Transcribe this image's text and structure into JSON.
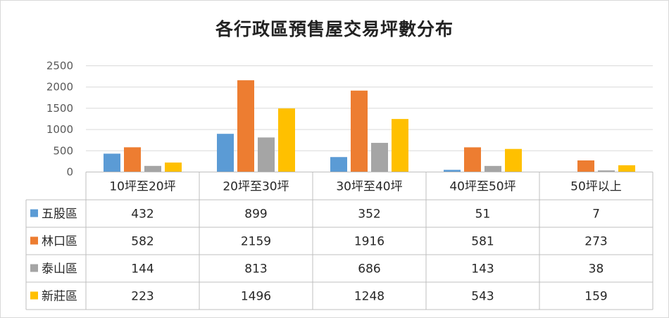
{
  "chart_data": {
    "type": "bar",
    "title": "各行政區預售屋交易坪數分布",
    "categories": [
      "10坪至20坪",
      "20坪至30坪",
      "30坪至40坪",
      "40坪至50坪",
      "50坪以上"
    ],
    "series": [
      {
        "name": "五股區",
        "color": "#5b9bd5",
        "values": [
          432,
          899,
          352,
          51,
          7
        ]
      },
      {
        "name": "林口區",
        "color": "#ed7d31",
        "values": [
          582,
          2159,
          1916,
          581,
          273
        ]
      },
      {
        "name": "泰山區",
        "color": "#a5a5a5",
        "values": [
          144,
          813,
          686,
          143,
          38
        ]
      },
      {
        "name": "新莊區",
        "color": "#ffc000",
        "values": [
          223,
          1496,
          1248,
          543,
          159
        ]
      }
    ],
    "ylim": [
      0,
      2500
    ],
    "yticks": [
      0,
      500,
      1000,
      1500,
      2000,
      2500
    ],
    "grid": true,
    "legend": "data-table",
    "xlabel": "",
    "ylabel": ""
  }
}
